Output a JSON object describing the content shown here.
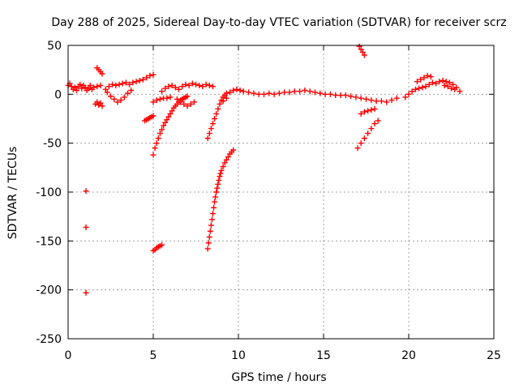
{
  "chart_data": {
    "type": "scatter",
    "title": "Day 288 of 2025, Sidereal Day-to-day VTEC variation (SDTVAR) for receiver scrz",
    "xlabel": "GPS time / hours",
    "ylabel": "SDTVAR / TECUs",
    "xlim": [
      0,
      25
    ],
    "ylim": [
      -250,
      50
    ],
    "xticks": [
      0,
      5,
      10,
      15,
      20,
      25
    ],
    "yticks": [
      50,
      0,
      -50,
      -100,
      -150,
      -200,
      -250
    ],
    "grid": true,
    "marker": "plus",
    "color": "#ff0000",
    "series": [
      {
        "name": "base-segment-1",
        "points": [
          [
            0.0,
            9
          ],
          [
            0.2,
            8
          ],
          [
            0.4,
            7
          ],
          [
            0.6,
            8
          ],
          [
            0.8,
            6
          ],
          [
            1.0,
            7
          ],
          [
            1.2,
            6
          ],
          [
            1.4,
            5
          ],
          [
            0.1,
            11
          ],
          [
            0.5,
            4
          ],
          [
            0.9,
            9
          ],
          [
            1.3,
            9
          ],
          [
            1.5,
            7
          ],
          [
            1.7,
            8
          ],
          [
            0.3,
            5
          ],
          [
            0.7,
            10
          ],
          [
            1.1,
            4
          ],
          [
            1.9,
            9
          ]
        ]
      },
      {
        "name": "arc-0-rise",
        "points": [
          [
            1.6,
            -10
          ],
          [
            1.7,
            -8
          ],
          [
            1.8,
            -11
          ],
          [
            1.9,
            -9
          ],
          [
            2.0,
            -12
          ]
        ]
      },
      {
        "name": "arc-1-8",
        "points": [
          [
            1.7,
            27
          ],
          [
            1.8,
            25
          ],
          [
            1.9,
            23
          ],
          [
            2.0,
            21
          ]
        ]
      },
      {
        "name": "arc-2-5",
        "points": [
          [
            2.2,
            5
          ],
          [
            2.4,
            8
          ],
          [
            2.6,
            10
          ],
          [
            2.8,
            9
          ],
          [
            3.0,
            10
          ],
          [
            3.2,
            11
          ],
          [
            3.4,
            12
          ],
          [
            3.6,
            10
          ],
          [
            3.8,
            12
          ],
          [
            4.0,
            13
          ],
          [
            4.2,
            14
          ],
          [
            4.4,
            15
          ],
          [
            4.6,
            17
          ],
          [
            4.8,
            19
          ],
          [
            5.0,
            20
          ],
          [
            2.3,
            2
          ],
          [
            2.5,
            -2
          ],
          [
            2.7,
            -5
          ],
          [
            2.9,
            -8
          ],
          [
            3.1,
            -6
          ],
          [
            3.3,
            -3
          ],
          [
            3.5,
            1
          ],
          [
            3.7,
            4
          ]
        ]
      },
      {
        "name": "short-dash-4",
        "points": [
          [
            4.5,
            -27
          ],
          [
            4.6,
            -26
          ],
          [
            4.7,
            -25
          ],
          [
            4.8,
            -24
          ],
          [
            4.9,
            -23
          ],
          [
            5.0,
            -22
          ]
        ]
      },
      {
        "name": "steep-arc-5",
        "points": [
          [
            5.0,
            -62
          ],
          [
            5.1,
            -55
          ],
          [
            5.2,
            -50
          ],
          [
            5.3,
            -45
          ],
          [
            5.4,
            -40
          ],
          [
            5.5,
            -36
          ],
          [
            5.6,
            -32
          ],
          [
            5.7,
            -29
          ],
          [
            5.8,
            -26
          ],
          [
            5.9,
            -23
          ],
          [
            6.0,
            -20
          ],
          [
            6.1,
            -17
          ],
          [
            6.2,
            -14
          ],
          [
            6.3,
            -12
          ],
          [
            6.4,
            -10
          ],
          [
            6.5,
            -8
          ],
          [
            6.6,
            -6
          ],
          [
            6.7,
            -5
          ],
          [
            6.8,
            -4
          ],
          [
            6.9,
            -3
          ],
          [
            7.0,
            -2
          ]
        ]
      },
      {
        "name": "plateau-5-7",
        "points": [
          [
            5.0,
            -8
          ],
          [
            5.2,
            -6
          ],
          [
            5.4,
            -5
          ],
          [
            5.6,
            -4
          ],
          [
            5.8,
            -4
          ],
          [
            6.0,
            -3
          ],
          [
            5.5,
            3
          ],
          [
            5.7,
            6
          ],
          [
            5.9,
            8
          ],
          [
            6.1,
            9
          ],
          [
            6.3,
            7
          ],
          [
            6.5,
            5
          ],
          [
            6.7,
            8
          ],
          [
            6.9,
            10
          ],
          [
            7.1,
            9
          ],
          [
            7.3,
            11
          ],
          [
            7.5,
            10
          ],
          [
            7.7,
            9
          ],
          [
            7.9,
            8
          ],
          [
            8.1,
            10
          ],
          [
            8.3,
            9
          ],
          [
            8.5,
            8
          ]
        ]
      },
      {
        "name": "mid-drop-6",
        "points": [
          [
            6.4,
            -5
          ],
          [
            6.6,
            -8
          ],
          [
            6.8,
            -10
          ],
          [
            7.0,
            -12
          ],
          [
            7.2,
            -10
          ],
          [
            7.4,
            -8
          ]
        ]
      },
      {
        "name": "arc-steep-8",
        "points": [
          [
            8.2,
            -45
          ],
          [
            8.3,
            -40
          ],
          [
            8.4,
            -35
          ],
          [
            8.5,
            -30
          ],
          [
            8.6,
            -25
          ],
          [
            8.7,
            -20
          ],
          [
            8.8,
            -15
          ],
          [
            8.9,
            -10
          ],
          [
            9.0,
            -6
          ],
          [
            9.1,
            -3
          ],
          [
            9.2,
            -1
          ],
          [
            9.3,
            1
          ]
        ]
      },
      {
        "name": "deep-arc-8",
        "points": [
          [
            8.2,
            -158
          ],
          [
            8.25,
            -152
          ],
          [
            8.3,
            -146
          ],
          [
            8.35,
            -140
          ],
          [
            8.4,
            -134
          ],
          [
            8.45,
            -128
          ],
          [
            8.5,
            -122
          ],
          [
            8.55,
            -116
          ],
          [
            8.6,
            -110
          ],
          [
            8.65,
            -105
          ],
          [
            8.7,
            -100
          ],
          [
            8.75,
            -96
          ],
          [
            8.8,
            -92
          ],
          [
            8.85,
            -88
          ],
          [
            8.9,
            -84
          ],
          [
            8.95,
            -81
          ],
          [
            9.0,
            -78
          ],
          [
            9.1,
            -74
          ],
          [
            9.2,
            -70
          ],
          [
            9.3,
            -67
          ],
          [
            9.4,
            -64
          ],
          [
            9.5,
            -61
          ],
          [
            9.6,
            -59
          ],
          [
            9.7,
            -57
          ]
        ]
      },
      {
        "name": "stretch-9-15",
        "points": [
          [
            9.5,
            2
          ],
          [
            9.7,
            4
          ],
          [
            9.9,
            5
          ],
          [
            10.1,
            4
          ],
          [
            10.3,
            3
          ],
          [
            10.6,
            2
          ],
          [
            10.9,
            1
          ],
          [
            11.2,
            0
          ],
          [
            11.5,
            0
          ],
          [
            11.8,
            1
          ],
          [
            12.1,
            0
          ],
          [
            12.4,
            1
          ],
          [
            12.7,
            2
          ],
          [
            13.0,
            2
          ],
          [
            13.3,
            3
          ],
          [
            13.6,
            3
          ],
          [
            13.9,
            4
          ],
          [
            14.2,
            3
          ],
          [
            14.5,
            2
          ],
          [
            14.8,
            1
          ],
          [
            15.1,
            0
          ],
          [
            15.4,
            0
          ],
          [
            15.7,
            -1
          ],
          [
            16.0,
            -1
          ],
          [
            16.3,
            -1
          ],
          [
            16.6,
            -2
          ],
          [
            16.9,
            -3
          ],
          [
            17.2,
            -4
          ],
          [
            17.5,
            -5
          ],
          [
            17.8,
            -6
          ],
          [
            18.1,
            -7
          ],
          [
            18.4,
            -7
          ],
          [
            18.7,
            -8
          ],
          [
            19.0,
            -6
          ],
          [
            19.3,
            -4
          ],
          [
            9.3,
            -4
          ],
          [
            9.1,
            -7
          ]
        ]
      },
      {
        "name": "arc-17-top",
        "points": [
          [
            17.1,
            49
          ],
          [
            17.2,
            46
          ],
          [
            17.3,
            43
          ],
          [
            17.4,
            40
          ]
        ]
      },
      {
        "name": "arc-17-mid",
        "points": [
          [
            17.2,
            -20
          ],
          [
            17.4,
            -18
          ],
          [
            17.6,
            -17
          ],
          [
            17.8,
            -16
          ],
          [
            18.0,
            -15
          ]
        ]
      },
      {
        "name": "arc-17-low",
        "points": [
          [
            17.0,
            -55
          ],
          [
            17.2,
            -50
          ],
          [
            17.4,
            -45
          ],
          [
            17.6,
            -40
          ],
          [
            17.8,
            -35
          ],
          [
            18.0,
            -30
          ],
          [
            18.2,
            -27
          ]
        ]
      },
      {
        "name": "segment-20-23",
        "points": [
          [
            19.8,
            -3
          ],
          [
            20.0,
            0
          ],
          [
            20.2,
            3
          ],
          [
            20.4,
            5
          ],
          [
            20.6,
            6
          ],
          [
            20.8,
            7
          ],
          [
            21.0,
            8
          ],
          [
            21.2,
            10
          ],
          [
            21.4,
            12
          ],
          [
            21.6,
            11
          ],
          [
            21.8,
            13
          ],
          [
            22.0,
            14
          ],
          [
            22.2,
            13
          ],
          [
            22.4,
            12
          ],
          [
            22.6,
            10
          ],
          [
            22.8,
            7
          ],
          [
            23.0,
            3
          ],
          [
            20.5,
            13
          ],
          [
            20.7,
            15
          ],
          [
            20.9,
            17
          ],
          [
            21.1,
            19
          ],
          [
            21.3,
            18
          ],
          [
            22.1,
            9
          ],
          [
            22.3,
            8
          ],
          [
            22.5,
            6
          ],
          [
            22.7,
            5
          ]
        ]
      },
      {
        "name": "isolated-1h",
        "points": [
          [
            1.05,
            -99
          ],
          [
            1.05,
            -136
          ],
          [
            1.05,
            -203
          ]
        ]
      },
      {
        "name": "short-dash-5",
        "points": [
          [
            5.0,
            -160
          ],
          [
            5.1,
            -159
          ],
          [
            5.2,
            -157
          ],
          [
            5.3,
            -156
          ],
          [
            5.4,
            -155
          ],
          [
            5.5,
            -154
          ]
        ]
      }
    ]
  }
}
